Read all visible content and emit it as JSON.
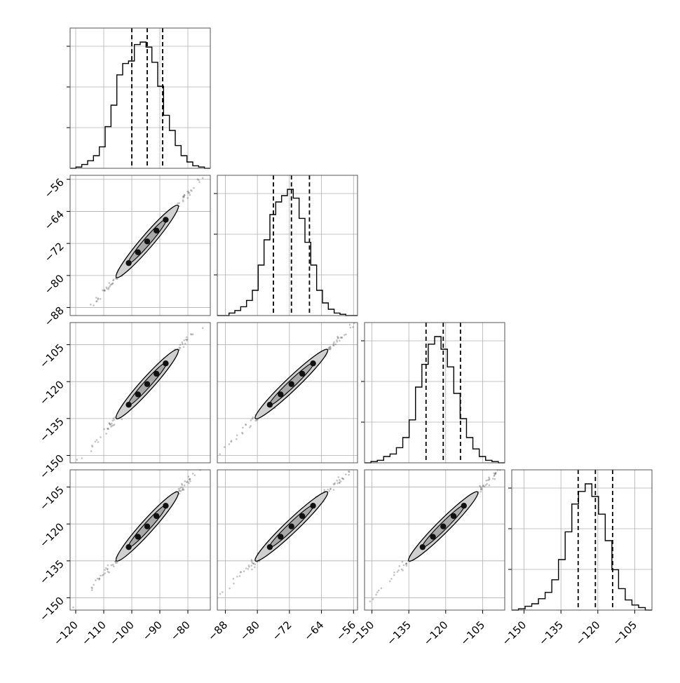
{
  "chart_data": {
    "type": "corner",
    "title": "",
    "grid": true,
    "parameters": [
      {
        "label": "",
        "range": [
          -122,
          -72
        ],
        "ticks": [
          -120,
          -110,
          -100,
          -90,
          -80
        ],
        "tick_labels": [
          "−120",
          "−110",
          "−100",
          "−90",
          "−80"
        ],
        "quantiles": [
          -100,
          -94.5,
          -89
        ]
      },
      {
        "label": "",
        "range": [
          -90,
          -55
        ],
        "ticks": [
          -88,
          -80,
          -72,
          -64,
          -56
        ],
        "tick_labels": [
          "−88",
          "−80",
          "−72",
          "−64",
          "−56"
        ],
        "quantiles": [
          -76,
          -71.5,
          -67
        ]
      },
      {
        "label": "",
        "range": [
          -153,
          -96
        ],
        "ticks": [
          -150,
          -135,
          -120,
          -105
        ],
        "tick_labels": [
          "−150",
          "−135",
          "−120",
          "−105"
        ],
        "quantiles": [
          -128,
          -121,
          -114
        ]
      },
      {
        "label": "",
        "range": [
          -155,
          -98
        ],
        "ticks": [
          -150,
          -135,
          -120,
          -105
        ],
        "tick_labels": [
          "−150",
          "−135",
          "−120",
          "−105"
        ],
        "quantiles": [
          -128,
          -121,
          -114
        ]
      }
    ],
    "histograms": [
      [
        0,
        0.01,
        0.03,
        0.06,
        0.1,
        0.17,
        0.33,
        0.5,
        0.74,
        0.83,
        0.85,
        0.98,
        1.0,
        0.96,
        0.84,
        0.65,
        0.42,
        0.3,
        0.18,
        0.1,
        0.05,
        0.02,
        0.01,
        0
      ],
      [
        0,
        0,
        0.02,
        0.04,
        0.07,
        0.12,
        0.2,
        0.4,
        0.6,
        0.8,
        0.9,
        0.95,
        1.0,
        0.93,
        0.77,
        0.58,
        0.4,
        0.2,
        0.1,
        0.05,
        0.02,
        0.01,
        0,
        0
      ],
      [
        0,
        0.01,
        0.02,
        0.05,
        0.07,
        0.12,
        0.2,
        0.34,
        0.6,
        0.78,
        0.94,
        1.0,
        0.9,
        0.76,
        0.55,
        0.35,
        0.2,
        0.11,
        0.05,
        0.02,
        0.01,
        0
      ],
      [
        0,
        0.01,
        0.03,
        0.05,
        0.09,
        0.14,
        0.24,
        0.4,
        0.62,
        0.84,
        0.94,
        1.0,
        0.9,
        0.76,
        0.55,
        0.32,
        0.17,
        0.08,
        0.04,
        0.02,
        0
      ]
    ],
    "correlation": {
      "1-0": 0.99,
      "2-0": 0.99,
      "2-1": 0.99,
      "3-0": 0.99,
      "3-1": 0.99,
      "3-2": 0.99
    }
  }
}
